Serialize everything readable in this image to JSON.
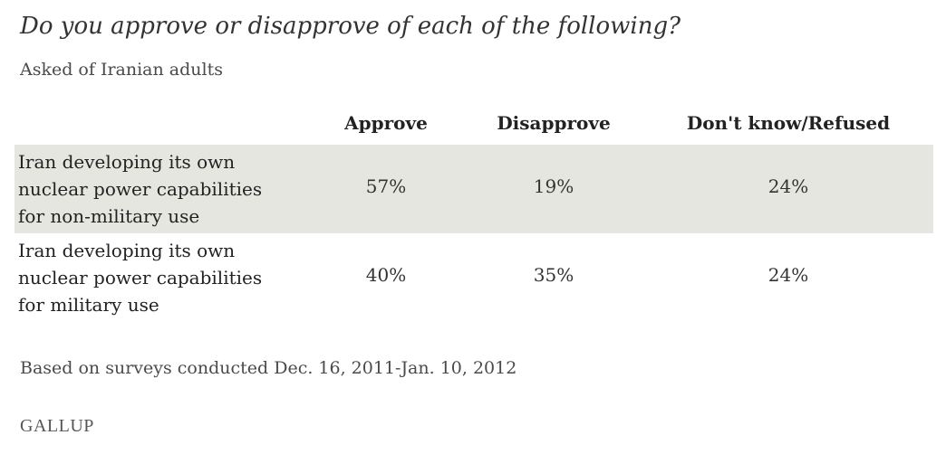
{
  "header": {
    "title": "Do you approve or disapprove of each of the following?",
    "subtitle": "Asked of Iranian adults"
  },
  "chart_data": {
    "type": "table",
    "title": "Do you approve or disapprove of each of the following?",
    "subtitle": "Asked of Iranian adults",
    "columns": [
      "Approve",
      "Disapprove",
      "Don't know/Refused"
    ],
    "rows": [
      {
        "label_lines": [
          "Iran developing its own",
          "nuclear power capabilities",
          "for non-military use"
        ],
        "values": [
          "57%",
          "19%",
          "24%"
        ]
      },
      {
        "label_lines": [
          "Iran developing its own",
          "nuclear power capabilities",
          "for military use"
        ],
        "values": [
          "40%",
          "35%",
          "24%"
        ]
      }
    ],
    "note": "Based on surveys conducted Dec. 16, 2011-Jan. 10, 2012"
  },
  "footer": {
    "logo_text": "GALLUP"
  },
  "colors": {
    "row_shade": "#e6e6e1",
    "text": "#333333"
  }
}
